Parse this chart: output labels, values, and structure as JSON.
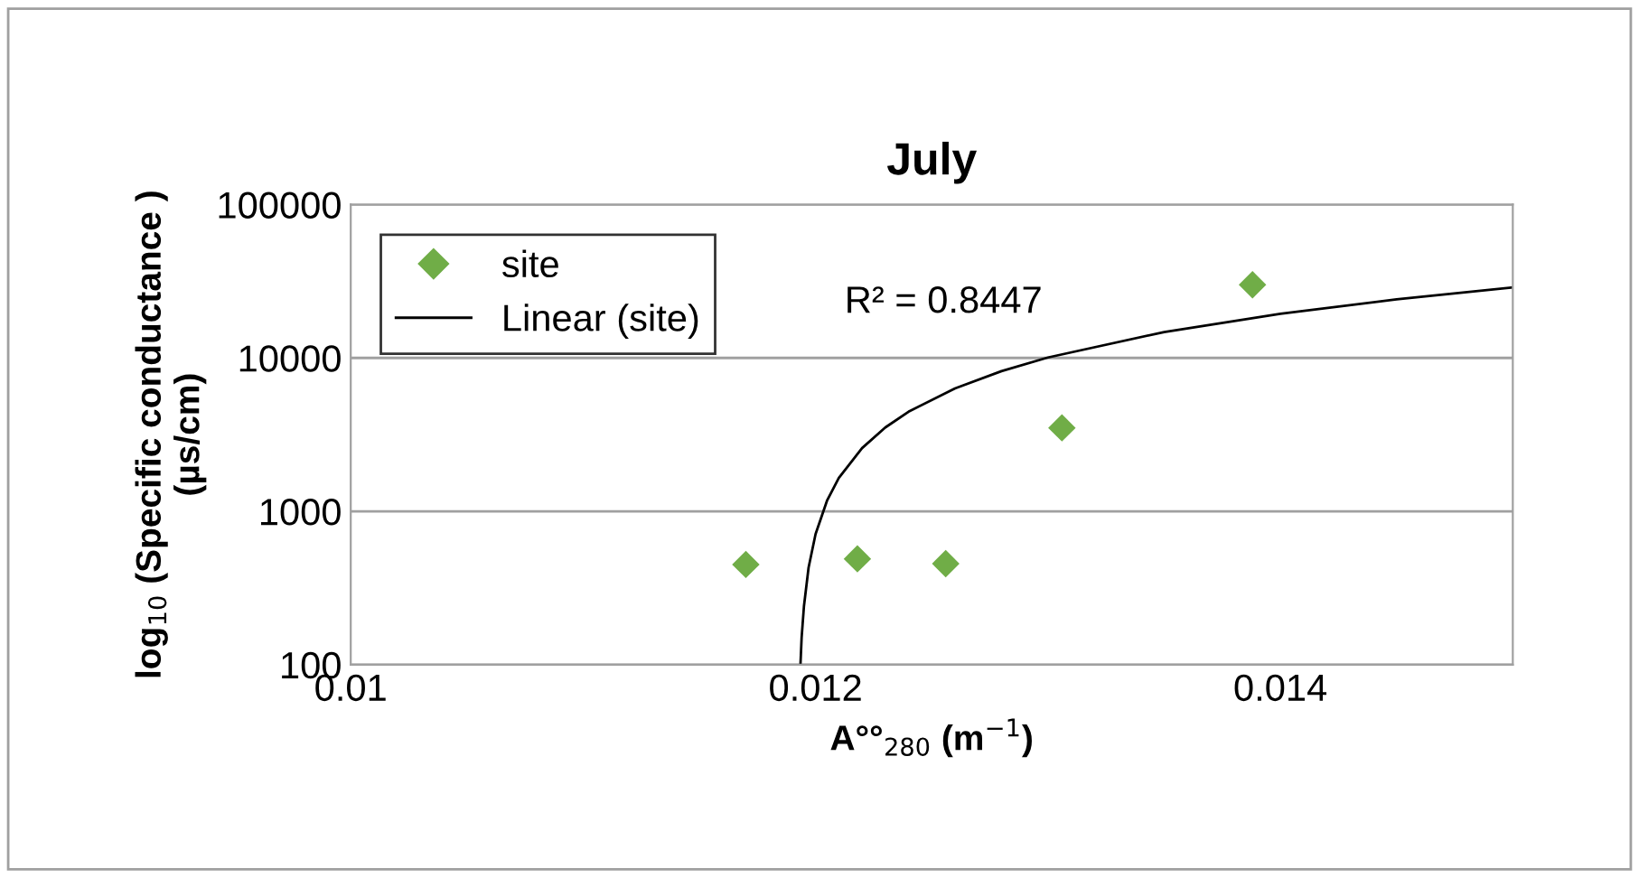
{
  "chart_data": {
    "type": "scatter",
    "title": "July",
    "xlabel": "A°°$_{280}$ (m$^{−1}$)",
    "ylabel": "log$_{10}$ (Specific conductance )\n(µs/cm)",
    "series": [
      {
        "name": "site",
        "color": "#70ad47",
        "marker": "diamond",
        "x": [
          0.0117,
          0.01218,
          0.01256,
          0.01306,
          0.01388
        ],
        "values": [
          450,
          490,
          455,
          3500,
          30000
        ]
      },
      {
        "name": "Linear (site)",
        "type": "line",
        "color": "#000000",
        "marker": "none",
        "line_style": "solid",
        "x": [
          0.011935,
          0.01194,
          0.01195,
          0.01197,
          0.012,
          0.01205,
          0.0121,
          0.0122,
          0.0123,
          0.0124,
          0.0126,
          0.0128,
          0.013,
          0.0135,
          0.014,
          0.0145,
          0.015
        ],
        "values": [
          100,
          150,
          240,
          430,
          710,
          1180,
          1650,
          2580,
          3520,
          4460,
          6330,
          8200,
          10070,
          14750,
          19430,
          24110,
          28790
        ]
      }
    ],
    "annotations": [
      "R² = 0.8447"
    ],
    "log": "y",
    "xlim": [
      0.01,
      0.015
    ],
    "xticks": [
      0.01,
      0.012,
      0.014
    ],
    "ylim": [
      100,
      100000
    ],
    "yticks": [
      100,
      1000,
      10000,
      100000
    ],
    "grid": "y",
    "legend": "top left"
  }
}
